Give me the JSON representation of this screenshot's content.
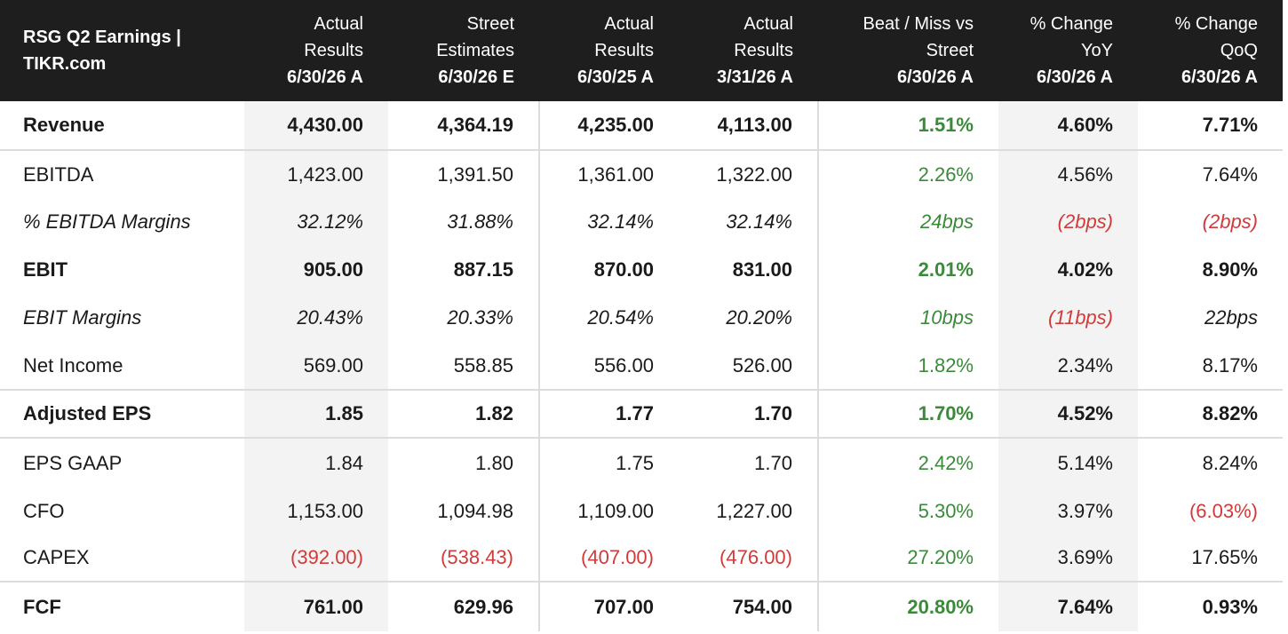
{
  "title_line1": "RSG Q2 Earnings |",
  "title_line2": "TIKR.com",
  "columns": [
    {
      "line1": "Actual",
      "line2": "Results",
      "date": "6/30/26 A"
    },
    {
      "line1": "Street",
      "line2": "Estimates",
      "date": "6/30/26 E"
    },
    {
      "line1": "Actual",
      "line2": "Results",
      "date": "6/30/25 A"
    },
    {
      "line1": "Actual",
      "line2": "Results",
      "date": "3/31/26 A"
    },
    {
      "line1": "Beat / Miss vs",
      "line2": "Street",
      "date": "6/30/26 A"
    },
    {
      "line1": "% Change",
      "line2": "YoY",
      "date": "6/30/26 A"
    },
    {
      "line1": "% Change",
      "line2": "QoQ",
      "date": "6/30/26 A"
    }
  ],
  "rows": [
    {
      "label": "Revenue",
      "values": [
        "4,430.00",
        "4,364.19",
        "4,235.00",
        "4,113.00",
        "1.51%",
        "4.60%",
        "7.71%"
      ]
    },
    {
      "label": "EBITDA",
      "values": [
        "1,423.00",
        "1,391.50",
        "1,361.00",
        "1,322.00",
        "2.26%",
        "4.56%",
        "7.64%"
      ]
    },
    {
      "label": "% EBITDA Margins",
      "values": [
        "32.12%",
        "31.88%",
        "32.14%",
        "32.14%",
        "24bps",
        "(2bps)",
        "(2bps)"
      ]
    },
    {
      "label": "EBIT",
      "values": [
        "905.00",
        "887.15",
        "870.00",
        "831.00",
        "2.01%",
        "4.02%",
        "8.90%"
      ]
    },
    {
      "label": "EBIT Margins",
      "values": [
        "20.43%",
        "20.33%",
        "20.54%",
        "20.20%",
        "10bps",
        "(11bps)",
        "22bps"
      ]
    },
    {
      "label": "Net Income",
      "values": [
        "569.00",
        "558.85",
        "556.00",
        "526.00",
        "1.82%",
        "2.34%",
        "8.17%"
      ]
    },
    {
      "label": "Adjusted EPS",
      "values": [
        "1.85",
        "1.82",
        "1.77",
        "1.70",
        "1.70%",
        "4.52%",
        "8.82%"
      ]
    },
    {
      "label": "EPS GAAP",
      "values": [
        "1.84",
        "1.80",
        "1.75",
        "1.70",
        "2.42%",
        "5.14%",
        "8.24%"
      ]
    },
    {
      "label": "CFO",
      "values": [
        "1,153.00",
        "1,094.98",
        "1,109.00",
        "1,227.00",
        "5.30%",
        "3.97%",
        "(6.03%)"
      ]
    },
    {
      "label": "CAPEX",
      "values": [
        "(392.00)",
        "(538.43)",
        "(407.00)",
        "(476.00)",
        "27.20%",
        "3.69%",
        "17.65%"
      ]
    },
    {
      "label": "FCF",
      "values": [
        "761.00",
        "629.96",
        "707.00",
        "754.00",
        "20.80%",
        "7.64%",
        "0.93%"
      ]
    }
  ],
  "colors": {
    "header_bg": "#1e1e1e",
    "positive": "#3a8a3a",
    "negative": "#d23a3a",
    "shade": "#f3f3f3"
  }
}
